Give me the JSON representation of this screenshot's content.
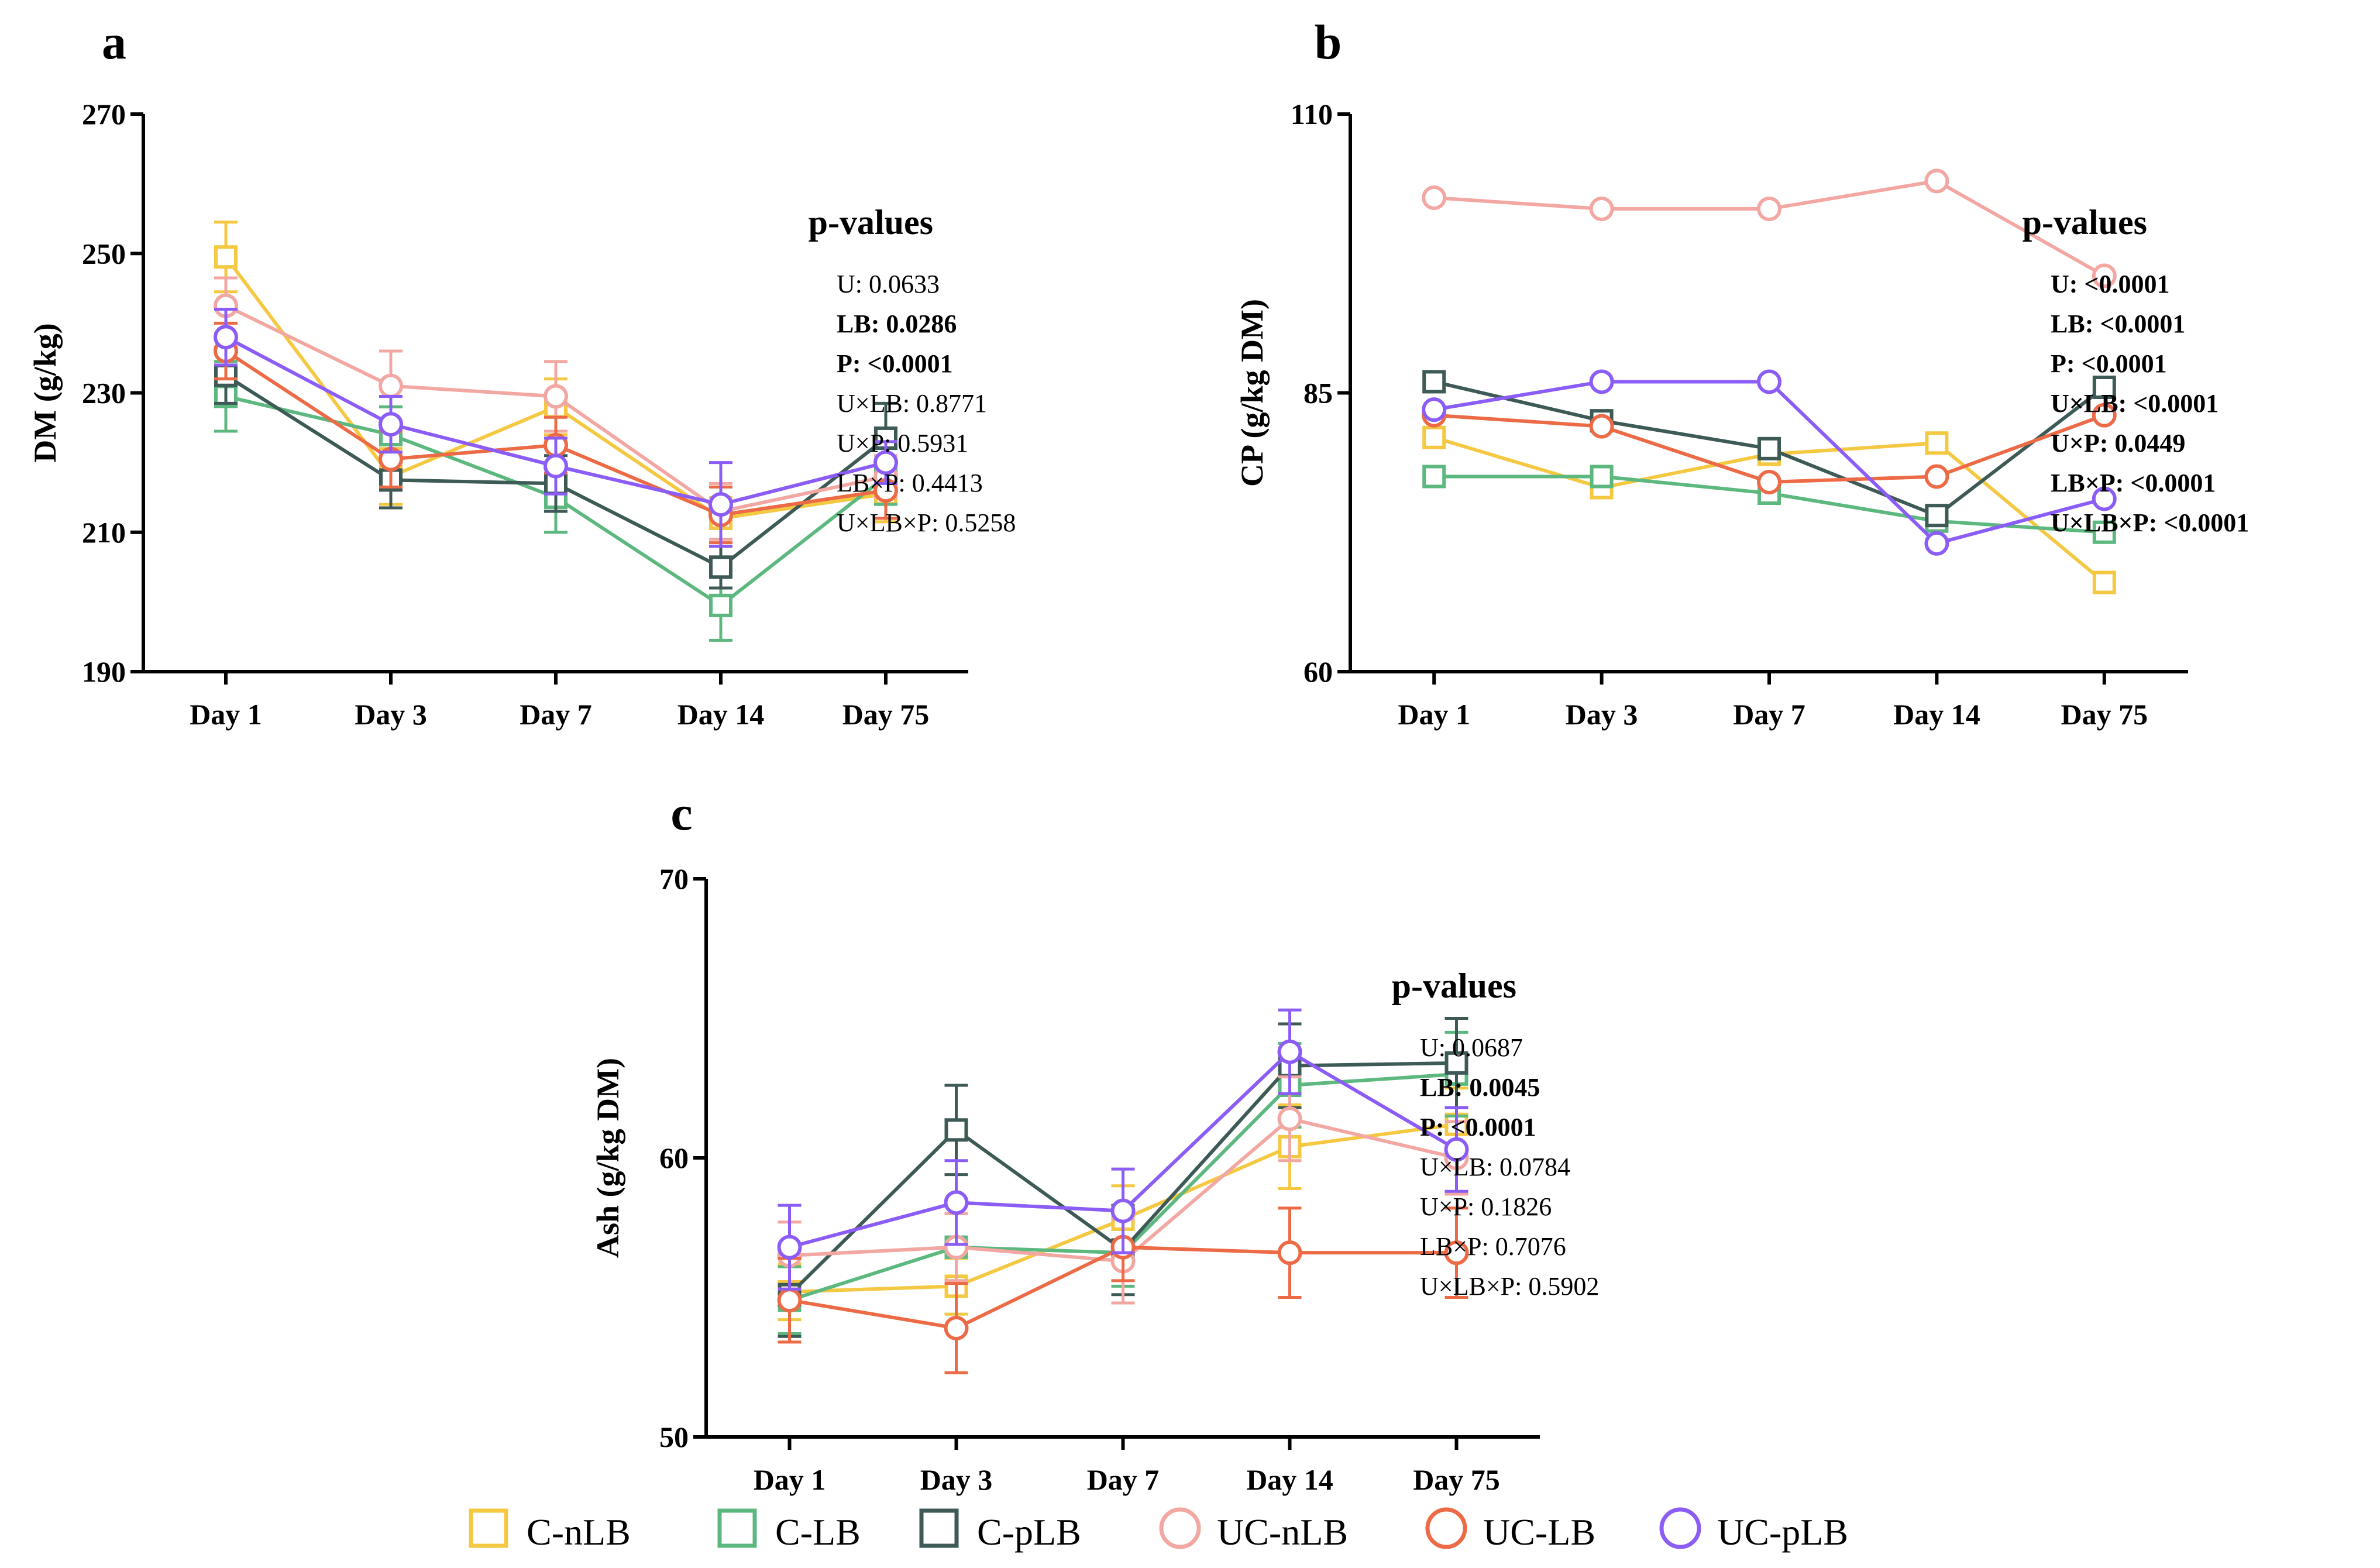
{
  "colors": {
    "C-nLB": "#f5c842",
    "C-LB": "#5cb87f",
    "C-pLB": "#3d5a56",
    "UC-nLB": "#f2a7a2",
    "UC-LB": "#ec6a45",
    "UC-pLB": "#8b5cf6"
  },
  "legend": [
    {
      "key": "C-nLB",
      "label": "C-nLB",
      "marker": "square"
    },
    {
      "key": "C-LB",
      "label": "C-LB",
      "marker": "square"
    },
    {
      "key": "C-pLB",
      "label": "C-pLB",
      "marker": "square"
    },
    {
      "key": "UC-nLB",
      "label": "UC-nLB",
      "marker": "circle"
    },
    {
      "key": "UC-LB",
      "label": "UC-LB",
      "marker": "circle"
    },
    {
      "key": "UC-pLB",
      "label": "UC-pLB",
      "marker": "circle"
    }
  ],
  "chart_data": [
    {
      "panel": "a",
      "type": "line",
      "ylabel": "DM (g/kg)",
      "ylim": [
        190,
        270
      ],
      "yticks": [
        190,
        210,
        230,
        250,
        270
      ],
      "categories": [
        "Day 1",
        "Day 3",
        "Day 7",
        "Day 14",
        "Day 75"
      ],
      "series": [
        {
          "name": "C-nLB",
          "marker": "square",
          "values": [
            249.5,
            218,
            228,
            212,
            215.5
          ],
          "errors": [
            5,
            4,
            4,
            3,
            4
          ]
        },
        {
          "name": "C-LB",
          "marker": "square",
          "values": [
            229.5,
            224,
            215,
            199.5,
            218
          ],
          "errors": [
            5,
            4,
            5,
            5,
            4
          ]
        },
        {
          "name": "C-pLB",
          "marker": "square",
          "values": [
            232.5,
            217.5,
            217,
            205,
            223.5
          ],
          "errors": [
            4,
            4,
            4,
            3,
            5
          ]
        },
        {
          "name": "UC-nLB",
          "marker": "circle",
          "values": [
            242.5,
            231,
            229.5,
            213,
            218
          ],
          "errors": [
            4,
            5,
            5,
            4,
            3
          ]
        },
        {
          "name": "UC-LB",
          "marker": "circle",
          "values": [
            236,
            220.5,
            222.5,
            212.5,
            216
          ],
          "errors": [
            4,
            4,
            4,
            4,
            4
          ]
        },
        {
          "name": "UC-pLB",
          "marker": "circle",
          "values": [
            238,
            225.5,
            219.5,
            214,
            220
          ],
          "errors": [
            4,
            4,
            4,
            6,
            3
          ]
        }
      ],
      "pvalues": {
        "title": "p-values",
        "lines": [
          {
            "text": "U: 0.0633",
            "bold": false
          },
          {
            "text": "LB: 0.0286",
            "bold": true
          },
          {
            "text": "P: <0.0001",
            "bold": true
          },
          {
            "text": "U×LB: 0.8771",
            "bold": false
          },
          {
            "text": "U×P: 0.5931",
            "bold": false
          },
          {
            "text": "LB×P: 0.4413",
            "bold": false
          },
          {
            "text": "U×LB×P: 0.5258",
            "bold": false
          }
        ]
      }
    },
    {
      "panel": "b",
      "type": "line",
      "ylabel": "CP (g/kg DM)",
      "ylim": [
        60,
        110
      ],
      "yticks": [
        60,
        85,
        110
      ],
      "categories": [
        "Day 1",
        "Day 3",
        "Day 7",
        "Day 14",
        "Day 75"
      ],
      "series": [
        {
          "name": "C-nLB",
          "marker": "square",
          "values": [
            81,
            76.5,
            79.5,
            80.5,
            68
          ],
          "errors": [
            0,
            0,
            0,
            0,
            0
          ]
        },
        {
          "name": "C-LB",
          "marker": "square",
          "values": [
            77.5,
            77.5,
            76,
            73.5,
            72.5
          ],
          "errors": [
            0,
            0,
            0,
            0,
            0
          ]
        },
        {
          "name": "C-pLB",
          "marker": "square",
          "values": [
            86,
            82.5,
            80,
            74,
            85.5
          ],
          "errors": [
            0,
            0,
            0,
            0,
            0
          ]
        },
        {
          "name": "UC-nLB",
          "marker": "circle",
          "values": [
            102.5,
            101.5,
            101.5,
            104,
            95.5
          ],
          "errors": [
            0,
            0,
            0,
            0,
            0
          ]
        },
        {
          "name": "UC-LB",
          "marker": "circle",
          "values": [
            83,
            82,
            77,
            77.5,
            83
          ],
          "errors": [
            0,
            0,
            0,
            0,
            0
          ]
        },
        {
          "name": "UC-pLB",
          "marker": "circle",
          "values": [
            83.5,
            86,
            86,
            71.5,
            75.5
          ],
          "errors": [
            0,
            0,
            0,
            0,
            0
          ]
        }
      ],
      "pvalues": {
        "title": "p-values",
        "lines": [
          {
            "text": "U: <0.0001",
            "bold": true
          },
          {
            "text": "LB: <0.0001",
            "bold": true
          },
          {
            "text": "P: <0.0001",
            "bold": true
          },
          {
            "text": "U×LB: <0.0001",
            "bold": true
          },
          {
            "text": "U×P: 0.0449",
            "bold": true
          },
          {
            "text": "LB×P: <0.0001",
            "bold": true
          },
          {
            "text": "U×LB×P: <0.0001",
            "bold": true
          }
        ]
      }
    },
    {
      "panel": "c",
      "type": "line",
      "ylabel": "Ash (g/kg DM)",
      "ylim": [
        50,
        70
      ],
      "yticks": [
        50,
        60,
        70
      ],
      "categories": [
        "Day 1",
        "Day 3",
        "Day 7",
        "Day 14",
        "Day 75"
      ],
      "series": [
        {
          "name": "C-nLB",
          "marker": "square",
          "values": [
            55.2,
            55.4,
            57.8,
            60.4,
            61.2
          ],
          "errors": [
            1,
            1,
            1.2,
            1.5,
            1.3
          ]
        },
        {
          "name": "C-LB",
          "marker": "square",
          "values": [
            54.9,
            56.8,
            56.6,
            62.6,
            63.0
          ],
          "errors": [
            1.2,
            1.2,
            1.2,
            1.5,
            1.5
          ]
        },
        {
          "name": "C-pLB",
          "marker": "square",
          "values": [
            55.1,
            61.0,
            56.7,
            63.3,
            63.4
          ],
          "errors": [
            1.5,
            1.6,
            1.6,
            1.5,
            1.6
          ]
        },
        {
          "name": "UC-nLB",
          "marker": "circle",
          "values": [
            56.5,
            56.8,
            56.3,
            61.4,
            60.0
          ],
          "errors": [
            1.2,
            1.2,
            1.5,
            1.5,
            1.3
          ]
        },
        {
          "name": "UC-LB",
          "marker": "circle",
          "values": [
            54.9,
            53.9,
            56.8,
            56.6,
            56.6
          ],
          "errors": [
            1.5,
            1.6,
            1.2,
            1.6,
            1.6
          ]
        },
        {
          "name": "UC-pLB",
          "marker": "circle",
          "values": [
            56.8,
            58.4,
            58.1,
            63.8,
            60.3
          ],
          "errors": [
            1.5,
            1.5,
            1.5,
            1.5,
            1.5
          ]
        }
      ],
      "pvalues": {
        "title": "p-values",
        "lines": [
          {
            "text": "U: 0.0687",
            "bold": false
          },
          {
            "text": "LB: 0.0045",
            "bold": true
          },
          {
            "text": "P: <0.0001",
            "bold": true
          },
          {
            "text": "U×LB: 0.0784",
            "bold": false
          },
          {
            "text": "U×P: 0.1826",
            "bold": false
          },
          {
            "text": "LB×P: 0.7076",
            "bold": false
          },
          {
            "text": "U×LB×P: 0.5902",
            "bold": false
          }
        ]
      }
    }
  ]
}
